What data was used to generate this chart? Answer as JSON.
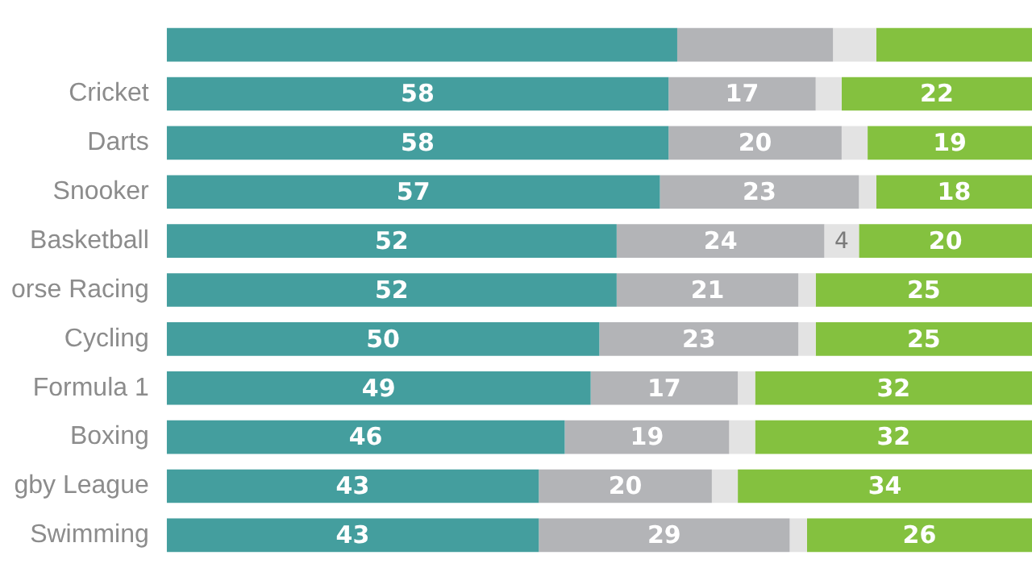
{
  "chart_data": {
    "type": "bar",
    "orientation": "horizontal",
    "stacked": true,
    "legend": false,
    "categories": [
      null,
      "Cricket",
      "Darts",
      "Snooker",
      "Basketball",
      "orse Racing",
      "Cycling",
      "Formula 1",
      "Boxing",
      "gby League",
      "Swimming"
    ],
    "series": [
      {
        "color": "#449e9e",
        "values": [
          59,
          58,
          58,
          57,
          52,
          52,
          50,
          49,
          46,
          43,
          43
        ],
        "value_labels": [
          null,
          "58",
          "58",
          "57",
          "52",
          "52",
          "50",
          "49",
          "46",
          "43",
          "43"
        ]
      },
      {
        "color": "#b3b4b7",
        "values": [
          18,
          17,
          20,
          23,
          24,
          21,
          23,
          17,
          19,
          20,
          29
        ],
        "value_labels": [
          null,
          "17",
          "20",
          "23",
          "24",
          "21",
          "23",
          "17",
          "19",
          "20",
          "29"
        ]
      },
      {
        "color": "#e3e3e3",
        "values": [
          5,
          3,
          3,
          2,
          4,
          2,
          2,
          2,
          3,
          3,
          2
        ],
        "value_labels": [
          null,
          null,
          null,
          null,
          "4",
          null,
          null,
          null,
          null,
          null,
          null
        ]
      },
      {
        "color": "#84c13f",
        "values": [
          18,
          22,
          19,
          18,
          20,
          25,
          25,
          32,
          32,
          34,
          26
        ],
        "value_labels": [
          null,
          "22",
          "19",
          "18",
          "20",
          "25",
          "25",
          "32",
          "32",
          "34",
          "26"
        ]
      }
    ]
  }
}
